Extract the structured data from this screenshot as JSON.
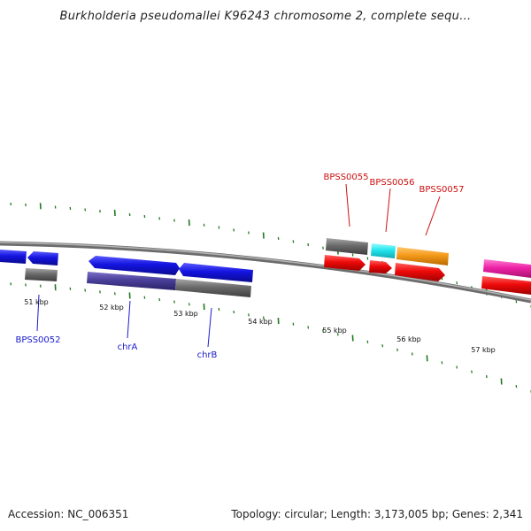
{
  "title": "Burkholderia pseudomallei K96243 chromosome 2, complete sequ...",
  "footer": {
    "accession": "Accession: NC_006351",
    "topology": "Topology: circular; Length: 3,173,005 bp; Genes: 2,341"
  },
  "scale_labels": [
    "51 kbp",
    "52 kbp",
    "53 kbp",
    "54 kbp",
    "55 kbp",
    "56 kbp",
    "57 kbp"
  ],
  "gene_labels": [
    {
      "text": "BPSS0055",
      "color": "#cc1010"
    },
    {
      "text": "BPSS0056",
      "color": "#cc1010"
    },
    {
      "text": "BPSS0057",
      "color": "#cc1010"
    },
    {
      "text": "BPSS0052",
      "color": "#1a1acc"
    },
    {
      "text": "chrA",
      "color": "#1a1acc"
    },
    {
      "text": "chrB",
      "color": "#1a1acc"
    }
  ],
  "colors": {
    "backbone": "#8a8a8a",
    "tick": "#1f7a1f",
    "blue": "#1414e0",
    "red": "#ee0a0a",
    "gray": "#6a6a6a",
    "cyan": "#22e6ee",
    "orange": "#f59a1a",
    "magenta": "#ee22a8",
    "purple": "#4a3f9a"
  }
}
